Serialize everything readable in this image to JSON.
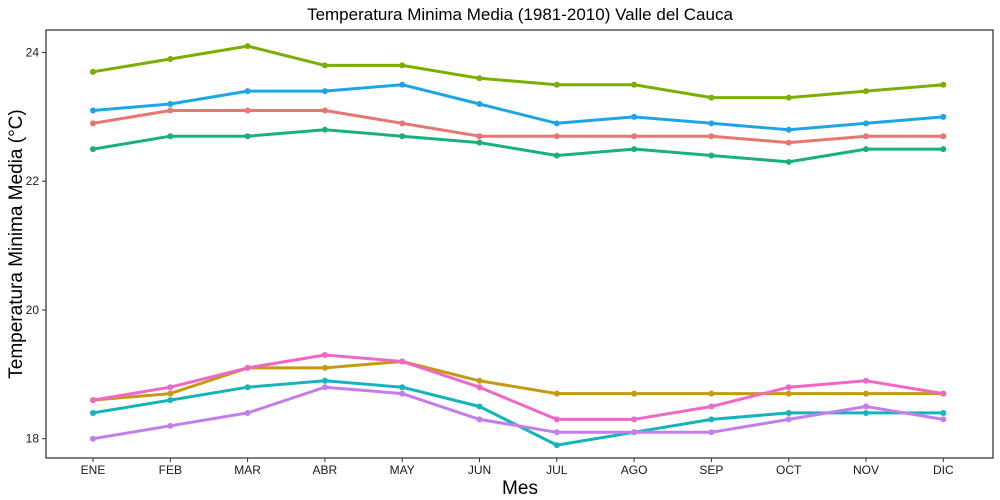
{
  "chart_data": {
    "type": "line",
    "title": "Temperatura Minima Media (1981-2010)  Valle del Cauca",
    "xlabel": "Mes",
    "ylabel": "Temperatura Minima Media  (°C)",
    "categories": [
      "ENE",
      "FEB",
      "MAR",
      "ABR",
      "MAY",
      "JUN",
      "JUL",
      "AGO",
      "SEP",
      "OCT",
      "NOV",
      "DIC"
    ],
    "ylim": [
      17.7,
      24.35
    ],
    "yticks": [
      18,
      20,
      22,
      24
    ],
    "grid": false,
    "legend": "none",
    "series": [
      {
        "color": "#7CAE00",
        "values": [
          23.7,
          23.9,
          24.1,
          23.8,
          23.8,
          23.6,
          23.5,
          23.5,
          23.3,
          23.3,
          23.4,
          23.5
        ]
      },
      {
        "color": "#1FA4E6",
        "values": [
          23.1,
          23.2,
          23.4,
          23.4,
          23.5,
          23.2,
          22.9,
          23.0,
          22.9,
          22.8,
          22.9,
          23.0
        ]
      },
      {
        "color": "#E7766E",
        "values": [
          22.9,
          23.1,
          23.1,
          23.1,
          22.9,
          22.7,
          22.7,
          22.7,
          22.7,
          22.6,
          22.7,
          22.7
        ]
      },
      {
        "color": "#18B17A",
        "values": [
          22.5,
          22.7,
          22.7,
          22.8,
          22.7,
          22.6,
          22.4,
          22.5,
          22.4,
          22.3,
          22.5,
          22.5
        ]
      },
      {
        "color": "#C59A11",
        "values": [
          18.6,
          18.7,
          19.1,
          19.1,
          19.2,
          18.9,
          18.7,
          18.7,
          18.7,
          18.7,
          18.7,
          18.7
        ]
      },
      {
        "color": "#F067C6",
        "values": [
          18.6,
          18.8,
          19.1,
          19.3,
          19.2,
          18.8,
          18.3,
          18.3,
          18.5,
          18.8,
          18.9,
          18.7
        ]
      },
      {
        "color": "#14B5B8",
        "values": [
          18.4,
          18.6,
          18.8,
          18.9,
          18.8,
          18.5,
          17.9,
          18.1,
          18.3,
          18.4,
          18.4,
          18.4
        ]
      },
      {
        "color": "#C37EEC",
        "values": [
          18.0,
          18.2,
          18.4,
          18.8,
          18.7,
          18.3,
          18.1,
          18.1,
          18.1,
          18.3,
          18.5,
          18.3
        ]
      }
    ]
  }
}
